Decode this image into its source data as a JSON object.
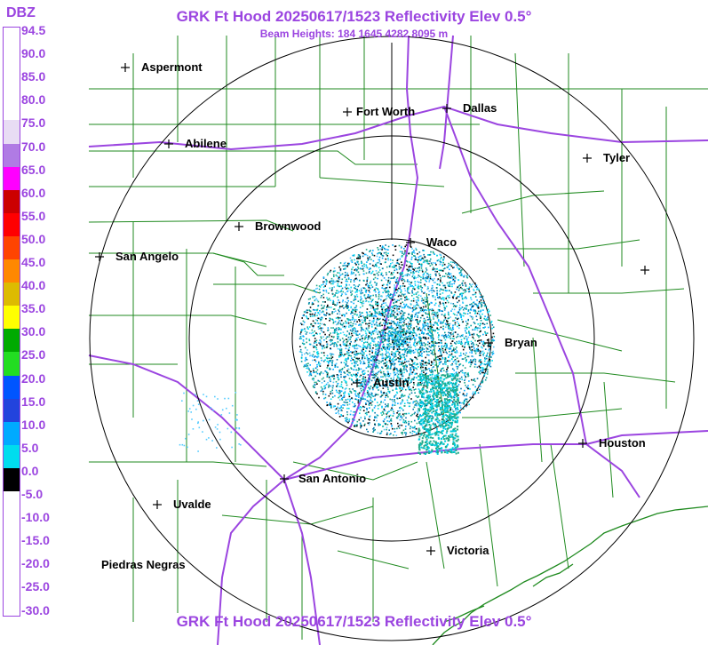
{
  "title": "GRK Ft Hood 20250617/1523 Reflectivity Elev 0.5°",
  "beam_heights": "Beam Heights: 184 1645 4282 8095 m",
  "legend": {
    "unit": "DBZ",
    "levels": [
      "94.5",
      "90.0",
      "85.0",
      "80.0",
      "75.0",
      "70.0",
      "65.0",
      "60.0",
      "55.0",
      "50.0",
      "45.0",
      "40.0",
      "35.0",
      "30.0",
      "25.0",
      "20.0",
      "15.0",
      "10.0",
      "5.0",
      "0.0",
      "-5.0",
      "-10.0",
      "-15.0",
      "-20.0",
      "-25.0",
      "-30.0"
    ],
    "colors": [
      "#ffffff",
      "#ffffff",
      "#ffffff",
      "#ffffff",
      "#e8dcf4",
      "#b07be4",
      "#ff00ff",
      "#cc0000",
      "#ff0000",
      "#ff4400",
      "#ff8800",
      "#ddbb00",
      "#ffff00",
      "#00aa00",
      "#22dd22",
      "#0055ff",
      "#2244dd",
      "#00aaff",
      "#00ddee",
      "#000000",
      "#ffffff",
      "#ffffff",
      "#ffffff",
      "#ffffff",
      "#ffffff"
    ]
  },
  "cities": [
    {
      "name": "Aspermont"
    },
    {
      "name": "Fort Worth"
    },
    {
      "name": "Dallas"
    },
    {
      "name": "Abilene"
    },
    {
      "name": "Tyler"
    },
    {
      "name": "Brownwood"
    },
    {
      "name": "Waco"
    },
    {
      "name": "San Angelo"
    },
    {
      "name": "Bryan"
    },
    {
      "name": "Austin"
    },
    {
      "name": "Houston"
    },
    {
      "name": "San Antonio"
    },
    {
      "name": "Uvalde"
    },
    {
      "name": "Victoria"
    },
    {
      "name": "Piedras Negras"
    },
    {
      "name": ""
    }
  ],
  "colors": {
    "title": "#9b45e0",
    "county_lines": "#1f8a1f",
    "highways": "#9b45e0",
    "range_rings": "#000000"
  }
}
